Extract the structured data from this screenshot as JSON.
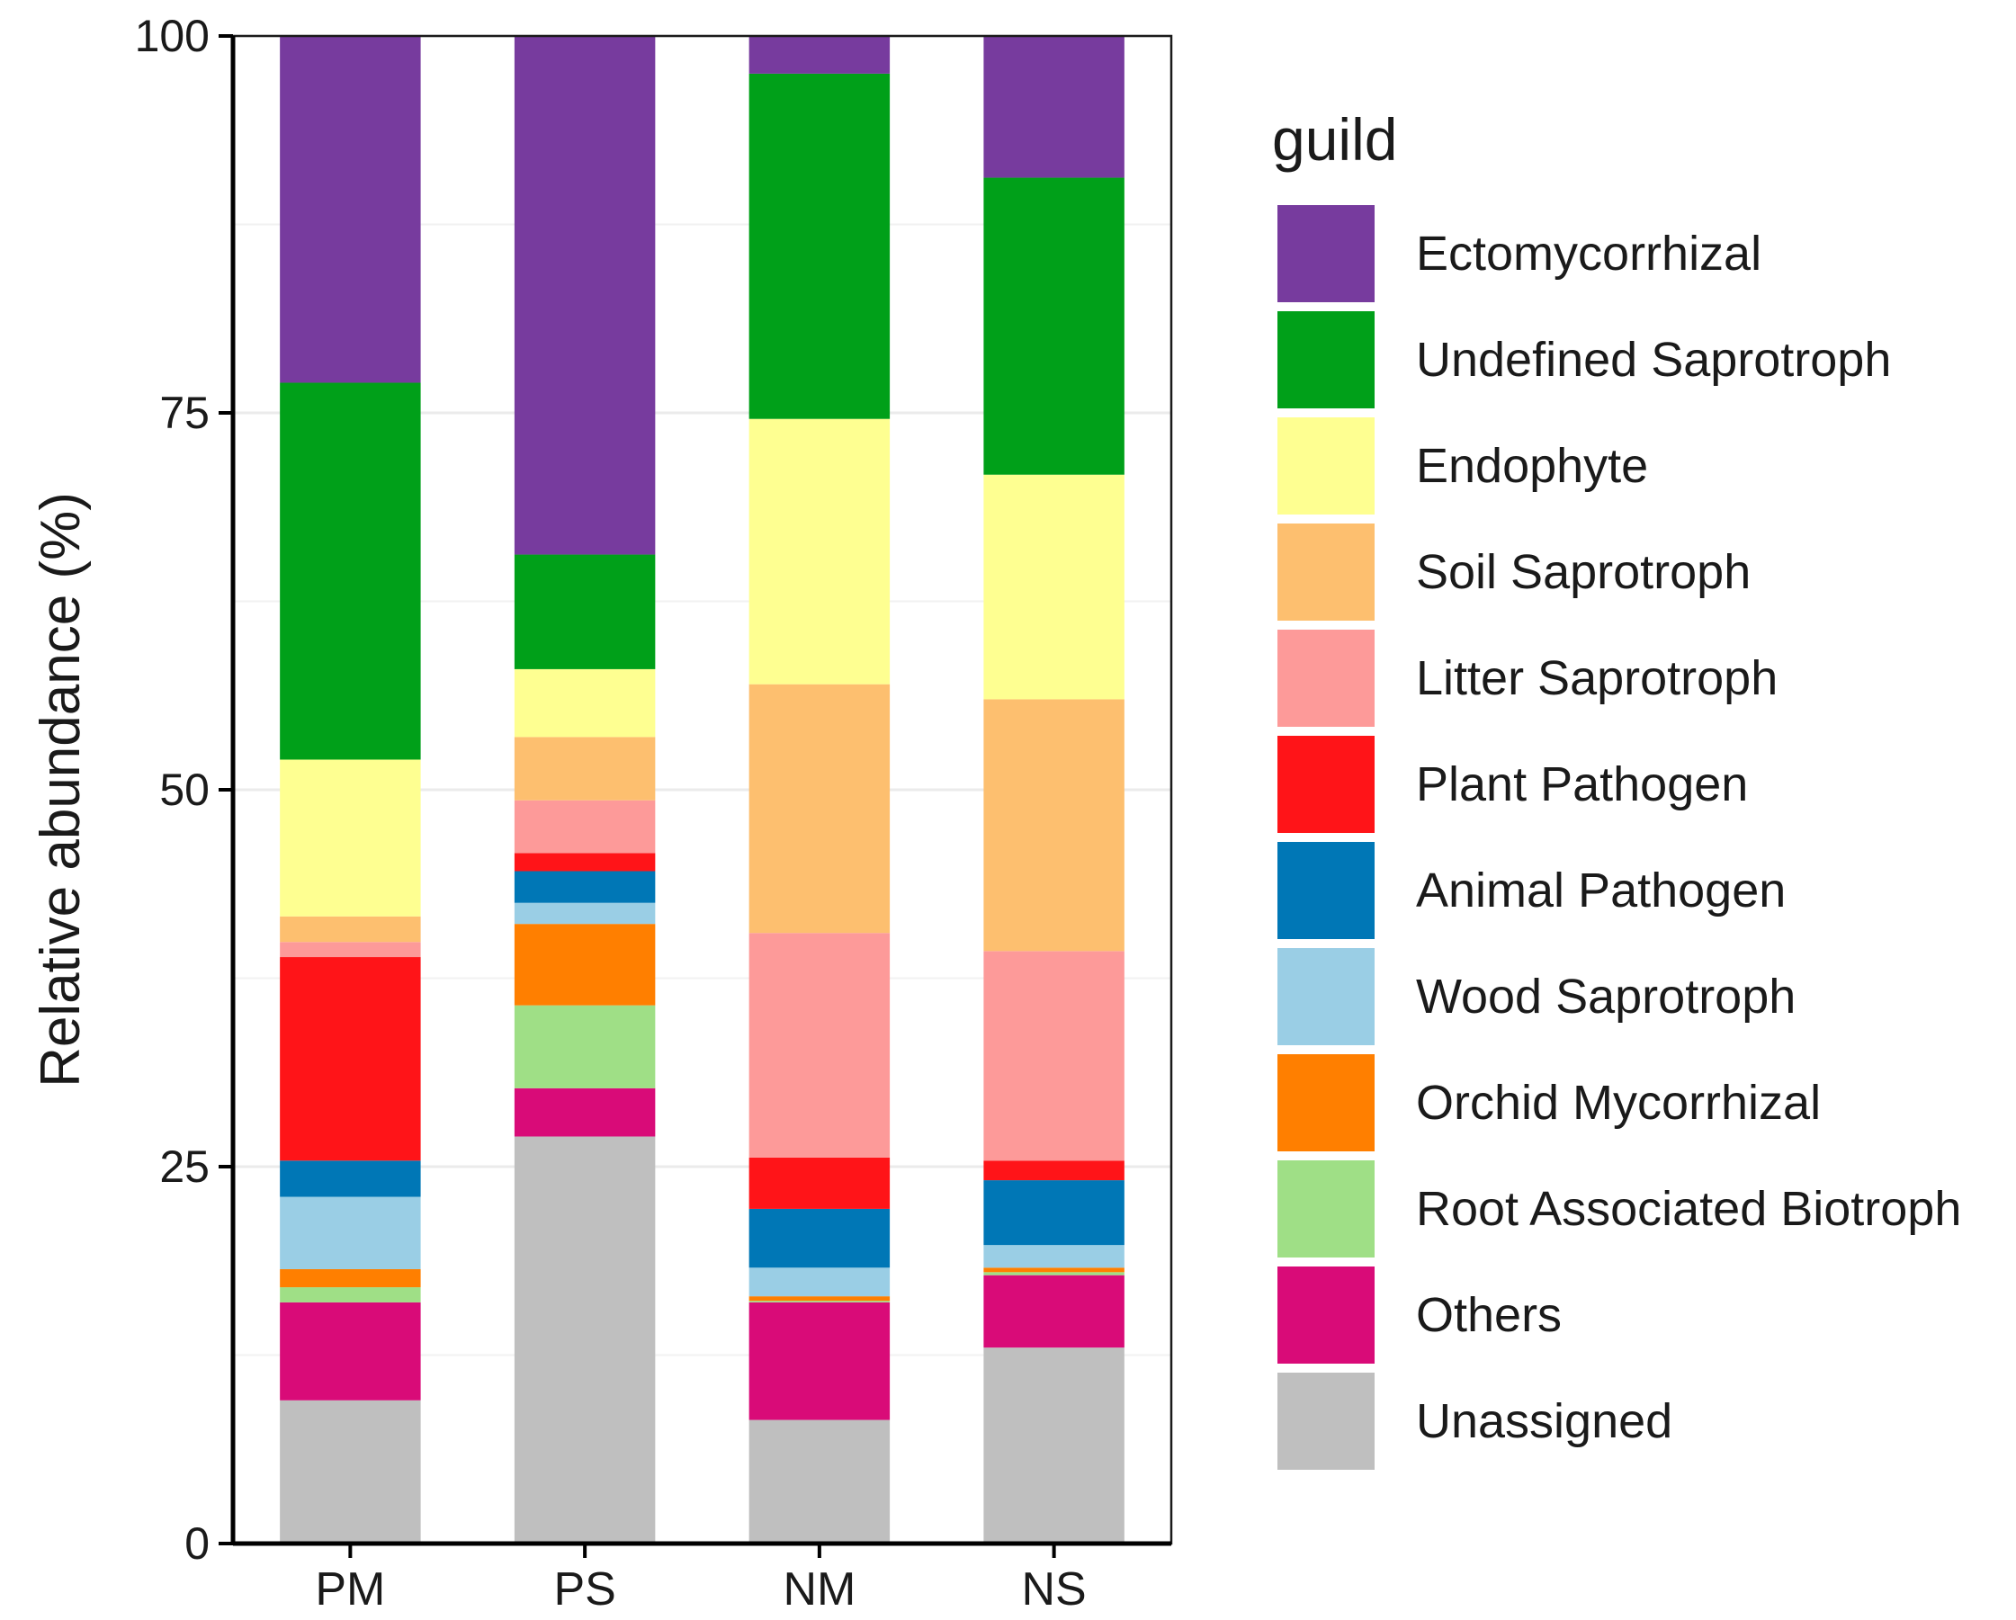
{
  "chart_data": {
    "type": "bar",
    "stacked": true,
    "ylabel": "Relative abundance (%)",
    "xlabel": "",
    "ylim": [
      0,
      100
    ],
    "yticks": [
      0,
      25,
      50,
      75,
      100
    ],
    "categories": [
      "PM",
      "PS",
      "NM",
      "NS"
    ],
    "legend_title": "guild",
    "legend_position": "right",
    "series": [
      {
        "name": "Unassigned",
        "color": "#bfbfbf",
        "values": [
          9.5,
          27.0,
          8.2,
          13.0
        ]
      },
      {
        "name": "Others",
        "color": "#d90b78",
        "values": [
          6.5,
          3.2,
          7.8,
          4.8
        ]
      },
      {
        "name": "Root Associated Biotroph",
        "color": "#9fdf86",
        "values": [
          1.0,
          5.5,
          0.1,
          0.2
        ]
      },
      {
        "name": "Orchid Mycorrhizal",
        "color": "#ff7f00",
        "values": [
          1.2,
          5.4,
          0.3,
          0.3
        ]
      },
      {
        "name": "Wood Saprotroph",
        "color": "#9acee5",
        "values": [
          4.8,
          1.4,
          1.9,
          1.5
        ]
      },
      {
        "name": "Animal Pathogen",
        "color": "#0077b6",
        "values": [
          2.4,
          2.1,
          3.9,
          4.3
        ]
      },
      {
        "name": "Plant Pathogen",
        "color": "#ff1418",
        "values": [
          13.5,
          1.2,
          3.4,
          1.3
        ]
      },
      {
        "name": "Litter Saprotroph",
        "color": "#fd9a99",
        "values": [
          1.0,
          3.5,
          14.9,
          13.9
        ]
      },
      {
        "name": "Soil Saprotroph",
        "color": "#fdbf6f",
        "values": [
          1.7,
          4.2,
          16.5,
          16.7
        ]
      },
      {
        "name": "Endophyte",
        "color": "#feff91",
        "values": [
          10.4,
          4.5,
          17.6,
          14.9
        ]
      },
      {
        "name": "Undefined Saprotroph",
        "color": "#00a019",
        "values": [
          25.0,
          7.6,
          22.9,
          19.7
        ]
      },
      {
        "name": "Ectomycorrhizal",
        "color": "#773b9e",
        "values": [
          23.0,
          34.4,
          2.5,
          9.4
        ]
      }
    ]
  }
}
